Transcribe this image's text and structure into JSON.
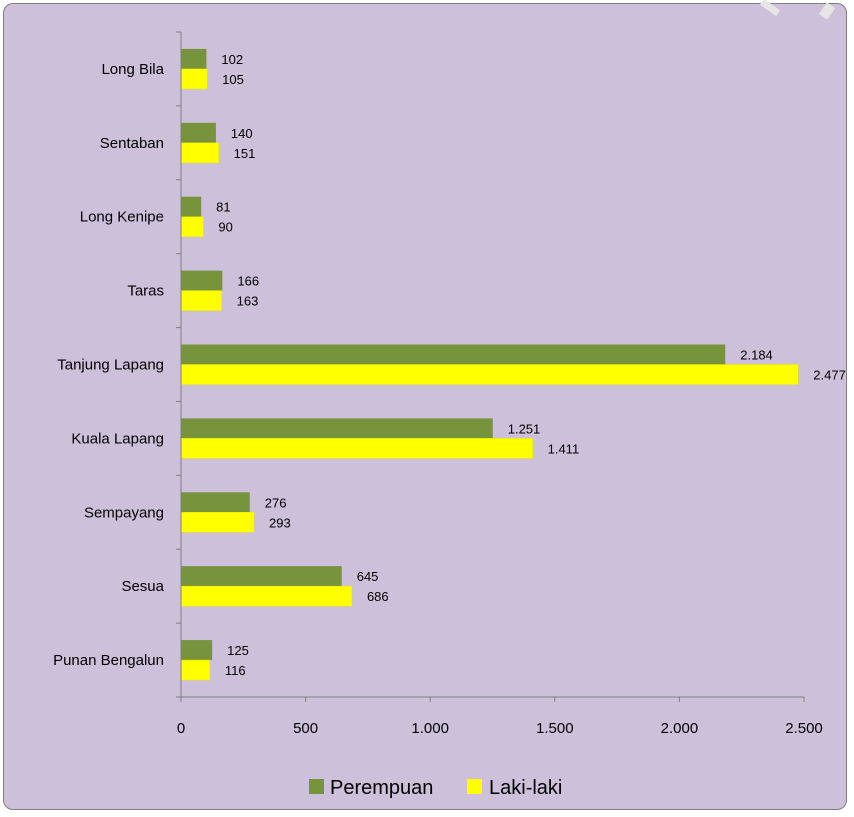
{
  "chart_data": {
    "type": "bar",
    "orientation": "horizontal",
    "categories": [
      "Long Bila",
      "Sentaban",
      "Long Kenipe",
      "Taras",
      "Tanjung Lapang",
      "Kuala Lapang",
      "Sempayang",
      "Sesua",
      "Punan Bengalun"
    ],
    "series": [
      {
        "name": "Perempuan",
        "color": "#77933c",
        "values": [
          102,
          140,
          81,
          166,
          2184,
          1251,
          276,
          645,
          125
        ],
        "labels": [
          "102",
          "140",
          "81",
          "166",
          "2.184",
          "1.251",
          "276",
          "645",
          "125"
        ]
      },
      {
        "name": "Laki-laki",
        "color": "#ffff00",
        "values": [
          105,
          151,
          90,
          163,
          2477,
          1411,
          293,
          686,
          116
        ],
        "labels": [
          "105",
          "151",
          "90",
          "163",
          "2.477",
          "1.411",
          "293",
          "686",
          "116"
        ]
      }
    ],
    "xlim": [
      0,
      2500
    ],
    "xticks": [
      0,
      500,
      1000,
      1500,
      2000,
      2500
    ],
    "xtick_labels": [
      "0",
      "500",
      "1.000",
      "1.500",
      "2.000",
      "2.500"
    ],
    "grid": false,
    "legend_position": "bottom",
    "background": "#ccc0da",
    "title": "",
    "xlabel": "",
    "ylabel": ""
  }
}
